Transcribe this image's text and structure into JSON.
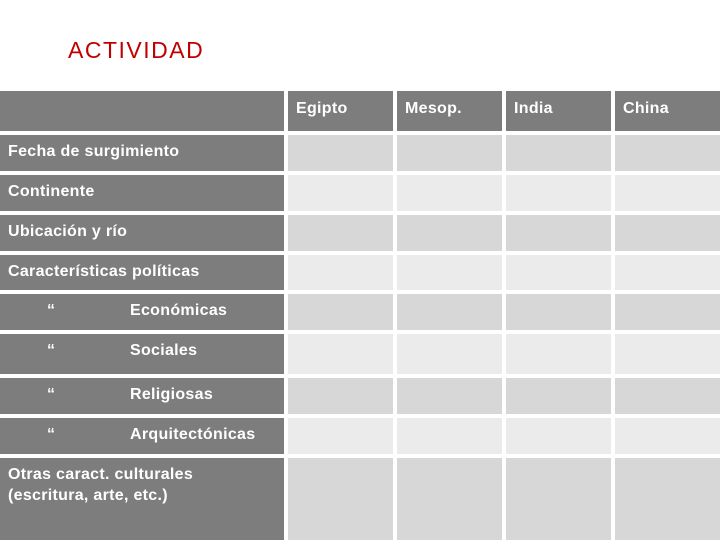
{
  "title": "ACTIVIDAD",
  "colors": {
    "title_text": "#c00000",
    "header_bg": "#7d7d7d",
    "header_text": "#ffffff",
    "row_band_dark": "#d7d7d7",
    "row_band_light": "#ebebeb",
    "gutter": "#ffffff"
  },
  "table": {
    "corner_label": "",
    "columns": [
      "Egipto",
      "Mesop.",
      "India",
      "China"
    ],
    "quote_mark": "“",
    "rows": [
      {
        "label": "Fecha de surgimiento",
        "quote": false
      },
      {
        "label": "Continente",
        "quote": false
      },
      {
        "label": "Ubicación y río",
        "quote": false
      },
      {
        "label": "Características políticas",
        "quote": false
      },
      {
        "label": "Económicas",
        "quote": true
      },
      {
        "label": "Sociales",
        "quote": true
      },
      {
        "label": "Religiosas",
        "quote": true
      },
      {
        "label": "Arquitectónicas",
        "quote": true
      },
      {
        "label": "Otras caract. culturales (escritura, arte, etc.)",
        "quote": false
      }
    ]
  }
}
